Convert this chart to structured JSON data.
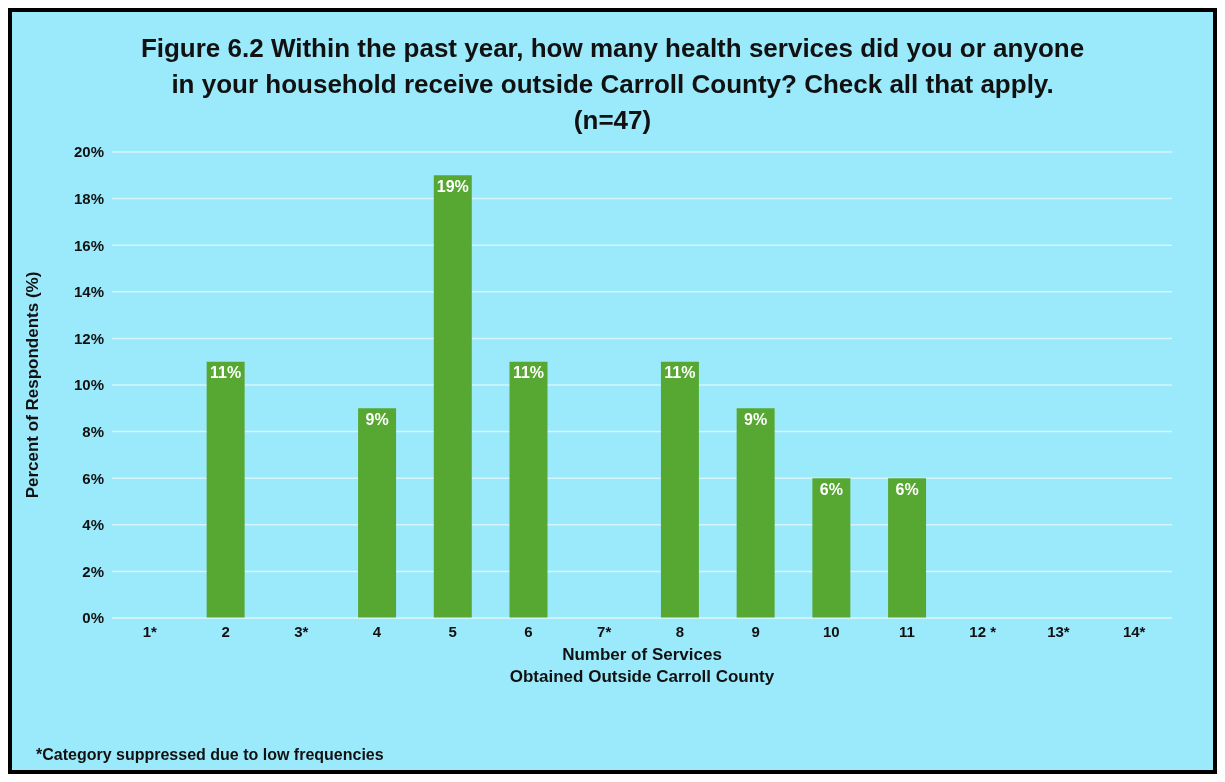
{
  "chart_data": {
    "type": "bar",
    "title": "Figure 6.2 Within the past year, how many health services did you or anyone in your household receive outside Carroll County? Check all that apply. (n=47)",
    "xlabel": "Number of Services\nObtained Outside Carroll County",
    "ylabel": "Percent of Respondents (%)",
    "categories": [
      "1*",
      "2",
      "3*",
      "4",
      "5",
      "6",
      "7*",
      "8",
      "9",
      "10",
      "11",
      "12 *",
      "13*",
      "14*"
    ],
    "values": [
      null,
      11,
      null,
      9,
      19,
      11,
      null,
      11,
      9,
      6,
      6,
      null,
      null,
      null
    ],
    "value_labels": [
      null,
      "11%",
      null,
      "9%",
      "19%",
      "11%",
      null,
      "11%",
      "9%",
      "6%",
      "6%",
      null,
      null,
      null
    ],
    "color": "#57a833",
    "ylim": [
      0,
      20
    ],
    "yticks": [
      {
        "value": 0,
        "label": "0%"
      },
      {
        "value": 2,
        "label": "2%"
      },
      {
        "value": 4,
        "label": "4%"
      },
      {
        "value": 6,
        "label": "6%"
      },
      {
        "value": 8,
        "label": "8%"
      },
      {
        "value": 10,
        "label": "10%"
      },
      {
        "value": 12,
        "label": "12%"
      },
      {
        "value": 14,
        "label": "14%"
      },
      {
        "value": 16,
        "label": "16%"
      },
      {
        "value": 18,
        "label": "18%"
      },
      {
        "value": 20,
        "label": "20%"
      }
    ],
    "grid": "y",
    "annotations": [
      "*Category suppressed due to low frequencies"
    ]
  }
}
